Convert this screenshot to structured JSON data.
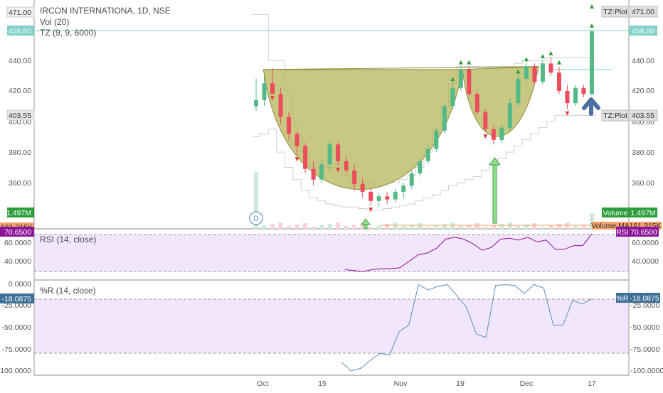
{
  "header": {
    "symbol_title": "IRCON INTERNATIONA, 1D, NSE",
    "indicator_vol": "Vol (20)",
    "indicator_tz": "TZ (9, 9, 6000)"
  },
  "colors": {
    "up": "#53b987",
    "down": "#eb4d5c",
    "cup_fill": "#b5b55a",
    "cup_stroke": "#8c8c3a",
    "rsi": "#8e1599",
    "rsi_band": "#f1e6fb",
    "wr": "#5b8fb3",
    "tz_line": "#cccccc",
    "highlight_line": "#7fd0c8",
    "arrow_blue": "#4a6fa0",
    "arrow_green": "#5ec35e"
  },
  "price_axis": {
    "ticks": [
      "440.00",
      "420.00",
      "400.00",
      "380.00",
      "360.00"
    ],
    "badges": {
      "top_left": "471.00",
      "top_right": "471.00",
      "top_right_label": "TZ:Plot",
      "green_left": "458.80",
      "green_right": "458.80",
      "mid_left": "403.55",
      "mid_right": "403.55",
      "mid_right_label": "TZ:Plot",
      "vol_left": "1.497M",
      "vol_right": "1.497M",
      "vol_right_label": "Volume",
      "volma_left": "161.315K",
      "volma_right": "161.315K",
      "volma_right_label": "Volume MA"
    }
  },
  "rsi_panel": {
    "title": "RSI (14, close)",
    "ticks": [
      "60.0000",
      "40.0000"
    ],
    "badge_left": "70.6500",
    "badge_right": "70.6500",
    "badge_right_label": "RSI"
  },
  "wr_panel": {
    "title": "%R (14, close)",
    "ticks_left": [
      "0.0000",
      "-25.0000",
      "-50.0000",
      "-75.0000",
      "-100.0000"
    ],
    "ticks_right": [
      "-25.0000",
      "-50.0000",
      "-75.0000",
      "-100.0000"
    ],
    "badge_left": "-18.0875",
    "badge_right": "-18.0875",
    "badge_right_label": "%R"
  },
  "time_axis": {
    "labels": [
      "Oct",
      "15",
      "Nov",
      "19",
      "Dec",
      "17"
    ]
  },
  "marker_label": "D",
  "chart_data": {
    "type": "candlestick",
    "title": "IRCON INTERNATIONA, 1D, NSE",
    "ylim": [
      345,
      478
    ],
    "candles": [
      {
        "o": 410,
        "h": 428,
        "l": 407,
        "c": 414
      },
      {
        "o": 414,
        "h": 430,
        "l": 410,
        "c": 425
      },
      {
        "o": 425,
        "h": 435,
        "l": 418,
        "c": 418
      },
      {
        "o": 418,
        "h": 422,
        "l": 398,
        "c": 403
      },
      {
        "o": 403,
        "h": 406,
        "l": 388,
        "c": 392
      },
      {
        "o": 392,
        "h": 394,
        "l": 378,
        "c": 384
      },
      {
        "o": 384,
        "h": 386,
        "l": 366,
        "c": 369
      },
      {
        "o": 369,
        "h": 374,
        "l": 358,
        "c": 362
      },
      {
        "o": 362,
        "h": 375,
        "l": 360,
        "c": 372
      },
      {
        "o": 372,
        "h": 388,
        "l": 368,
        "c": 385
      },
      {
        "o": 385,
        "h": 387,
        "l": 371,
        "c": 374
      },
      {
        "o": 374,
        "h": 378,
        "l": 366,
        "c": 368
      },
      {
        "o": 368,
        "h": 372,
        "l": 355,
        "c": 359
      },
      {
        "o": 359,
        "h": 363,
        "l": 350,
        "c": 354
      },
      {
        "o": 354,
        "h": 357,
        "l": 345,
        "c": 348
      },
      {
        "o": 348,
        "h": 353,
        "l": 344,
        "c": 351
      },
      {
        "o": 351,
        "h": 354,
        "l": 346,
        "c": 349
      },
      {
        "o": 349,
        "h": 356,
        "l": 347,
        "c": 354
      },
      {
        "o": 354,
        "h": 360,
        "l": 350,
        "c": 358
      },
      {
        "o": 358,
        "h": 368,
        "l": 356,
        "c": 366
      },
      {
        "o": 366,
        "h": 376,
        "l": 364,
        "c": 374
      },
      {
        "o": 374,
        "h": 384,
        "l": 372,
        "c": 382
      },
      {
        "o": 382,
        "h": 396,
        "l": 380,
        "c": 394
      },
      {
        "o": 394,
        "h": 412,
        "l": 392,
        "c": 410
      },
      {
        "o": 410,
        "h": 425,
        "l": 408,
        "c": 422
      },
      {
        "o": 422,
        "h": 436,
        "l": 420,
        "c": 434
      },
      {
        "o": 434,
        "h": 436,
        "l": 416,
        "c": 418
      },
      {
        "o": 418,
        "h": 420,
        "l": 404,
        "c": 406
      },
      {
        "o": 406,
        "h": 408,
        "l": 393,
        "c": 395
      },
      {
        "o": 395,
        "h": 397,
        "l": 385,
        "c": 388
      },
      {
        "o": 388,
        "h": 398,
        "l": 386,
        "c": 396
      },
      {
        "o": 396,
        "h": 415,
        "l": 394,
        "c": 412
      },
      {
        "o": 412,
        "h": 430,
        "l": 410,
        "c": 428
      },
      {
        "o": 428,
        "h": 438,
        "l": 426,
        "c": 436
      },
      {
        "o": 436,
        "h": 438,
        "l": 424,
        "c": 426
      },
      {
        "o": 426,
        "h": 440,
        "l": 424,
        "c": 438
      },
      {
        "o": 438,
        "h": 442,
        "l": 430,
        "c": 432
      },
      {
        "o": 432,
        "h": 436,
        "l": 418,
        "c": 420
      },
      {
        "o": 420,
        "h": 424,
        "l": 408,
        "c": 412
      },
      {
        "o": 412,
        "h": 424,
        "l": 410,
        "c": 422
      },
      {
        "o": 422,
        "h": 424,
        "l": 416,
        "c": 418
      },
      {
        "o": 418,
        "h": 460,
        "l": 417,
        "c": 459
      }
    ],
    "cup_handle": {
      "cup_left": 434,
      "cup_bottom": 348,
      "cup_right": 434,
      "handle_bottom": 387,
      "breakout_level": 434
    },
    "rsi": {
      "values": [
        32,
        31,
        30,
        32,
        33,
        33,
        34,
        41,
        48,
        50,
        55,
        65,
        67,
        65,
        60,
        53,
        56,
        65,
        66,
        64,
        67,
        62,
        64,
        54,
        54,
        58,
        58,
        70.65
      ],
      "band": [
        30,
        70
      ],
      "ylim": [
        22,
        76
      ]
    },
    "williams_r": {
      "values": [
        -90,
        -100,
        -97,
        -88,
        -80,
        -82,
        -55,
        -48,
        -2,
        -8,
        -4,
        -2,
        -15,
        -28,
        -58,
        -62,
        -3,
        -2,
        -3,
        -12,
        -2,
        -6,
        -48,
        -48,
        -20,
        -24,
        -18.0875
      ],
      "band": [
        -20,
        -80
      ],
      "ylim": [
        -103,
        3
      ]
    },
    "volume": {
      "last": "1.497M",
      "ma": "161.315K"
    },
    "tz_plot": {
      "upper": 471,
      "lower": 403.55
    }
  }
}
